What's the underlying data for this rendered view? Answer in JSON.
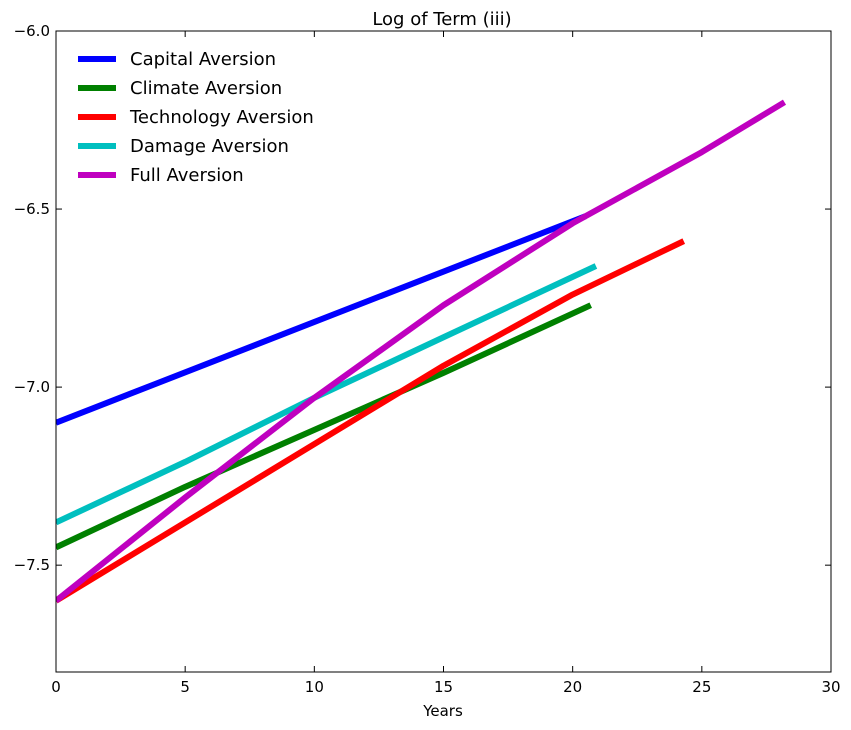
{
  "chart_data": {
    "type": "line",
    "title": "Log of Term (iii)",
    "xlabel": "Years",
    "ylabel": "",
    "xlim": [
      0,
      30
    ],
    "ylim": [
      -7.8,
      -6.0
    ],
    "xticks": [
      0,
      5,
      10,
      15,
      20,
      25,
      30
    ],
    "yticks": [
      -7.5,
      -7.0,
      -6.5,
      -6.0
    ],
    "xtick_labels": [
      "0",
      "5",
      "10",
      "15",
      "20",
      "25",
      "30"
    ],
    "ytick_labels": [
      "−7.5",
      "−7.0",
      "−6.5",
      "−6.0"
    ],
    "grid": false,
    "legend_position": "top-left",
    "series": [
      {
        "name": "Capital Aversion",
        "color": "#0000ff",
        "x": [
          0,
          20.5
        ],
        "y": [
          -7.1,
          -6.52
        ]
      },
      {
        "name": "Climate Aversion",
        "color": "#008000",
        "x": [
          0,
          5,
          10,
          15,
          20.7
        ],
        "y": [
          -7.45,
          -7.28,
          -7.12,
          -6.96,
          -6.77
        ]
      },
      {
        "name": "Technology Aversion",
        "color": "#ff0000",
        "x": [
          0,
          5,
          10,
          15,
          20,
          24.3
        ],
        "y": [
          -7.6,
          -7.38,
          -7.16,
          -6.94,
          -6.74,
          -6.59
        ]
      },
      {
        "name": "Damage Aversion",
        "color": "#00bfbf",
        "x": [
          0,
          5,
          10,
          15,
          20.9
        ],
        "y": [
          -7.38,
          -7.21,
          -7.03,
          -6.86,
          -6.66
        ]
      },
      {
        "name": "Full Aversion",
        "color": "#bf00bf",
        "x": [
          0,
          5,
          10,
          15,
          20,
          25,
          28.2
        ],
        "y": [
          -7.6,
          -7.31,
          -7.03,
          -6.77,
          -6.54,
          -6.34,
          -6.2
        ]
      }
    ]
  }
}
